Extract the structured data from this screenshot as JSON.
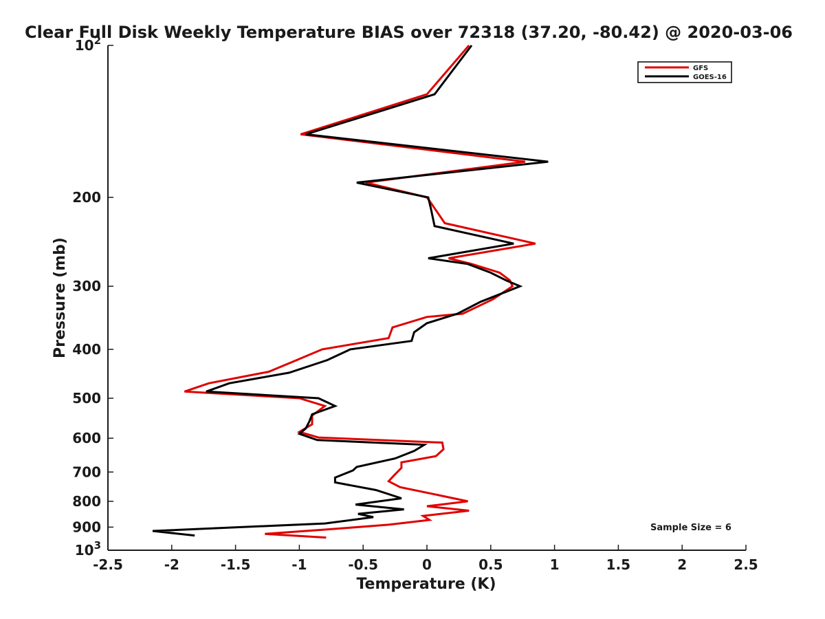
{
  "chart_data": {
    "type": "line",
    "title": "Clear Full Disk Weekly Temperature BIAS over 72318 (37.20, -80.42) @ 2020-03-06",
    "xlabel": "Temperature (K)",
    "ylabel": "Pressure (mb)",
    "xlim": [
      -2.5,
      2.5
    ],
    "ylim": [
      1000,
      100
    ],
    "yscale": "log",
    "y_reversed": true,
    "grid": false,
    "legend_position": "top-right",
    "xticks": [
      "-2.5",
      "-2",
      "-1.5",
      "-1",
      "-0.5",
      "0",
      "0.5",
      "1",
      "1.5",
      "2",
      "2.5"
    ],
    "yticks": [
      {
        "value": 100,
        "base": "10",
        "exp": "2"
      },
      {
        "value": 200,
        "label": "200"
      },
      {
        "value": 300,
        "label": "300"
      },
      {
        "value": 400,
        "label": "400"
      },
      {
        "value": 500,
        "label": "500"
      },
      {
        "value": 600,
        "label": "600"
      },
      {
        "value": 700,
        "label": "700"
      },
      {
        "value": 800,
        "label": "800"
      },
      {
        "value": 900,
        "label": "900"
      },
      {
        "value": 1000,
        "base": "10",
        "exp": "3"
      }
    ],
    "annotation": "Sample Size = 6",
    "series": [
      {
        "name": "GFS",
        "color": "#e00000",
        "points": [
          [
            0.33,
            100
          ],
          [
            0.0,
            125
          ],
          [
            -0.99,
            150
          ],
          [
            0.77,
            170
          ],
          [
            -0.48,
            187
          ],
          [
            0.0,
            200
          ],
          [
            0.03,
            205
          ],
          [
            0.14,
            225
          ],
          [
            0.85,
            247
          ],
          [
            0.17,
            264
          ],
          [
            0.35,
            271
          ],
          [
            0.57,
            282
          ],
          [
            0.65,
            292
          ],
          [
            0.67,
            300
          ],
          [
            0.52,
            318
          ],
          [
            0.28,
            340
          ],
          [
            0.0,
            345
          ],
          [
            -0.27,
            362
          ],
          [
            -0.3,
            380
          ],
          [
            -0.82,
            400
          ],
          [
            -1.02,
            420
          ],
          [
            -1.24,
            443
          ],
          [
            -1.71,
            467
          ],
          [
            -1.9,
            485
          ],
          [
            -1.0,
            500
          ],
          [
            -0.8,
            518
          ],
          [
            -0.9,
            541
          ],
          [
            -0.9,
            563
          ],
          [
            -1.0,
            583
          ],
          [
            -0.85,
            598
          ],
          [
            0.12,
            612
          ],
          [
            0.13,
            631
          ],
          [
            0.07,
            651
          ],
          [
            -0.2,
            670
          ],
          [
            -0.2,
            687
          ],
          [
            -0.26,
            712
          ],
          [
            -0.3,
            730
          ],
          [
            -0.21,
            750
          ],
          [
            0.06,
            775
          ],
          [
            0.32,
            800
          ],
          [
            0.0,
            818
          ],
          [
            0.33,
            835
          ],
          [
            -0.03,
            855
          ],
          [
            0.02,
            871
          ],
          [
            -0.3,
            890
          ],
          [
            -0.79,
            910
          ],
          [
            -1.27,
            928
          ],
          [
            -0.79,
            944
          ]
        ]
      },
      {
        "name": "GOES-16",
        "color": "#000000",
        "points": [
          [
            0.35,
            100
          ],
          [
            0.06,
            125
          ],
          [
            -0.95,
            150
          ],
          [
            0.95,
            170
          ],
          [
            -0.55,
            187
          ],
          [
            0.01,
            200
          ],
          [
            0.03,
            210
          ],
          [
            0.06,
            228
          ],
          [
            0.68,
            247
          ],
          [
            0.01,
            264
          ],
          [
            0.32,
            271
          ],
          [
            0.5,
            282
          ],
          [
            0.62,
            292
          ],
          [
            0.73,
            300
          ],
          [
            0.42,
            322
          ],
          [
            0.24,
            340
          ],
          [
            0.0,
            355
          ],
          [
            -0.1,
            370
          ],
          [
            -0.12,
            385
          ],
          [
            -0.6,
            400
          ],
          [
            -0.78,
            420
          ],
          [
            -1.08,
            445
          ],
          [
            -1.55,
            467
          ],
          [
            -1.73,
            485
          ],
          [
            -0.85,
            500
          ],
          [
            -0.72,
            518
          ],
          [
            -0.9,
            538
          ],
          [
            -0.92,
            555
          ],
          [
            -0.95,
            574
          ],
          [
            -1.0,
            588
          ],
          [
            -0.86,
            605
          ],
          [
            -0.02,
            618
          ],
          [
            -0.1,
            636
          ],
          [
            -0.25,
            658
          ],
          [
            -0.55,
            684
          ],
          [
            -0.58,
            695
          ],
          [
            -0.72,
            718
          ],
          [
            -0.72,
            734
          ],
          [
            -0.4,
            760
          ],
          [
            -0.2,
            789
          ],
          [
            -0.56,
            812
          ],
          [
            -0.18,
            830
          ],
          [
            -0.54,
            847
          ],
          [
            -0.42,
            860
          ],
          [
            -0.8,
            885
          ],
          [
            -2.15,
            916
          ],
          [
            -1.82,
            935
          ]
        ]
      }
    ]
  }
}
